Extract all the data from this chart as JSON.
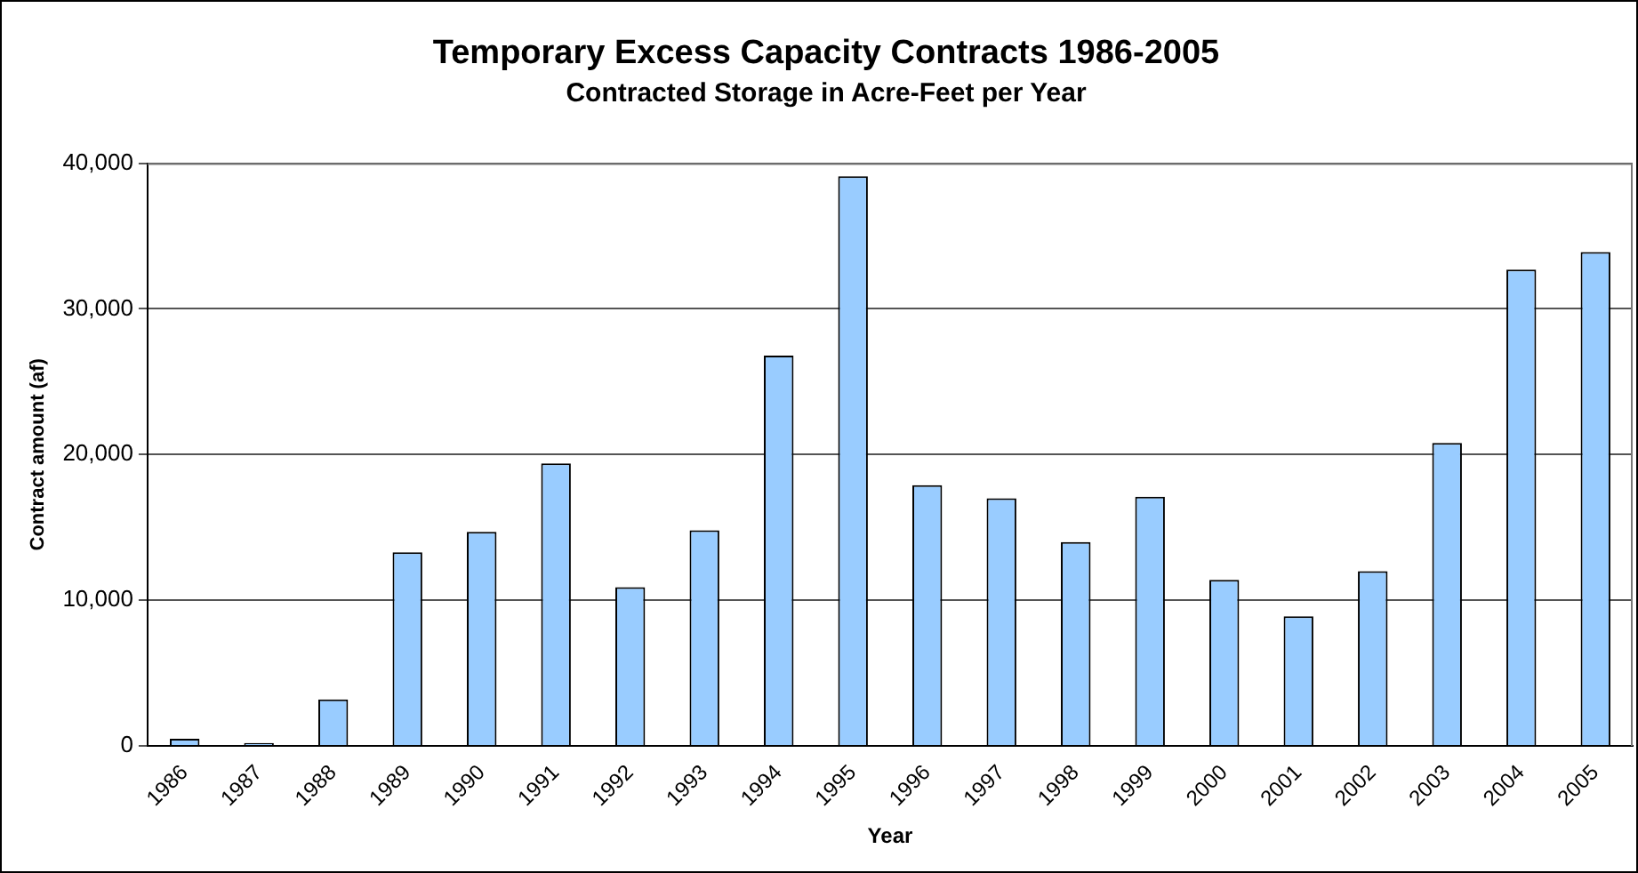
{
  "chart_data": {
    "type": "bar",
    "title": "Temporary Excess Capacity Contracts 1986-2005",
    "subtitle": "Contracted Storage in Acre-Feet per Year",
    "xlabel": "Year",
    "ylabel": "Contract amount (af)",
    "categories": [
      "1986",
      "1987",
      "1988",
      "1989",
      "1990",
      "1991",
      "1992",
      "1993",
      "1994",
      "1995",
      "1996",
      "1997",
      "1998",
      "1999",
      "2000",
      "2001",
      "2002",
      "2003",
      "2004",
      "2005"
    ],
    "values": [
      500,
      200,
      3200,
      13300,
      14700,
      19400,
      10900,
      14800,
      26800,
      39100,
      17900,
      17000,
      14000,
      17100,
      11400,
      8900,
      12000,
      20800,
      32700,
      33900
    ],
    "color": "#99ccff",
    "ylim": [
      0,
      40000
    ],
    "yticks": [
      {
        "value": 0,
        "label": "0"
      },
      {
        "value": 10000,
        "label": "10,000"
      },
      {
        "value": 20000,
        "label": "20,000"
      },
      {
        "value": 30000,
        "label": "30,000"
      },
      {
        "value": 40000,
        "label": "40,000"
      }
    ],
    "grid": "y",
    "legend": false
  }
}
